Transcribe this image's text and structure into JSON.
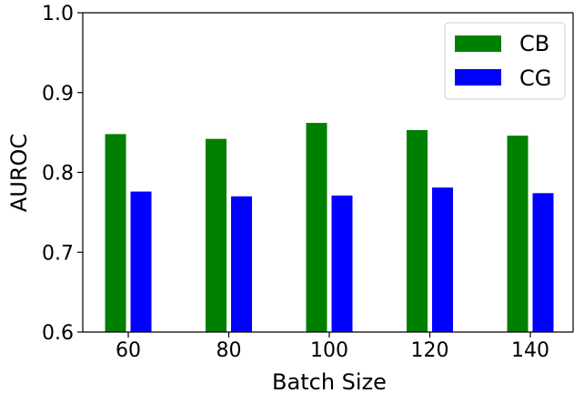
{
  "chart_data": {
    "type": "bar",
    "title": "",
    "xlabel": "Batch Size",
    "ylabel": "AUROC",
    "categories": [
      "60",
      "80",
      "100",
      "120",
      "140"
    ],
    "series": [
      {
        "name": "CB",
        "color": "#008000",
        "values": [
          0.848,
          0.842,
          0.862,
          0.853,
          0.846
        ]
      },
      {
        "name": "CG",
        "color": "#0000ff",
        "values": [
          0.776,
          0.77,
          0.771,
          0.781,
          0.774
        ]
      }
    ],
    "ylim": [
      0.6,
      1.0
    ],
    "yticks": [
      "0.6",
      "0.7",
      "0.8",
      "0.9",
      "1.0"
    ],
    "grid": false,
    "legend_position": "top-right"
  }
}
